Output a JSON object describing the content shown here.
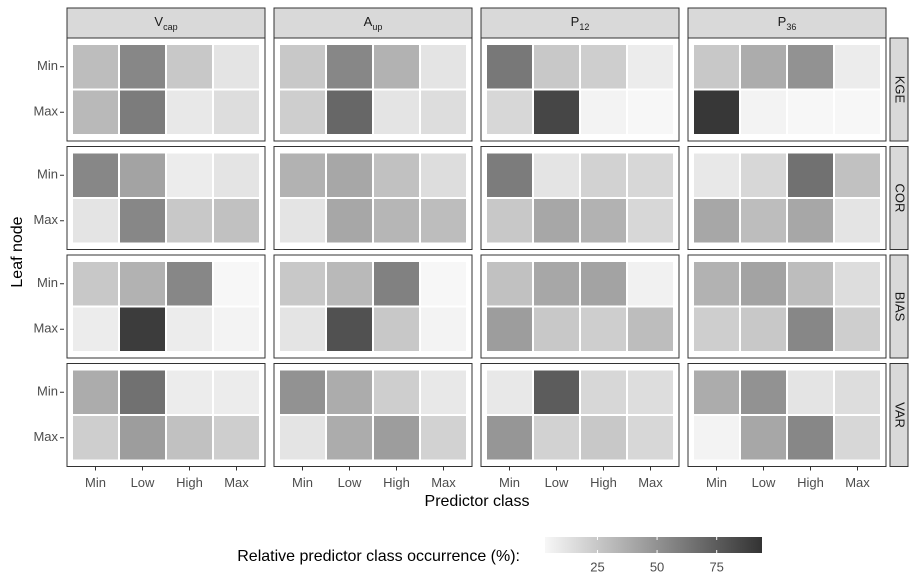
{
  "chart_data": {
    "type": "heatmap",
    "x_label": "Predictor class",
    "y_label": "Leaf node",
    "columns": [
      {
        "text": "V",
        "sub": "cap"
      },
      {
        "text": "A",
        "sub": "up"
      },
      {
        "text": "P",
        "sub": "12"
      },
      {
        "text": "P",
        "sub": "36"
      }
    ],
    "rows": [
      "KGE",
      "COR",
      "BIAS",
      "VAR"
    ],
    "categories": [
      "Min",
      "Low",
      "High",
      "Max"
    ],
    "y_categories": [
      "Min",
      "Max"
    ],
    "values": [
      [
        [
          [
            30,
            55,
            25,
            12
          ],
          [
            32,
            60,
            10,
            15
          ]
        ],
        [
          [
            25,
            55,
            35,
            12
          ],
          [
            22,
            70,
            12,
            15
          ]
        ],
        [
          [
            62,
            25,
            22,
            8
          ],
          [
            18,
            85,
            5,
            3
          ]
        ],
        [
          [
            25,
            38,
            50,
            8
          ],
          [
            92,
            5,
            3,
            3
          ]
        ]
      ],
      [
        [
          [
            55,
            42,
            8,
            12
          ],
          [
            12,
            55,
            25,
            28
          ]
        ],
        [
          [
            35,
            40,
            28,
            15
          ],
          [
            12,
            40,
            33,
            30
          ]
        ],
        [
          [
            60,
            12,
            20,
            18
          ],
          [
            25,
            40,
            35,
            18
          ]
        ],
        [
          [
            10,
            18,
            65,
            28
          ],
          [
            40,
            30,
            40,
            12
          ]
        ]
      ],
      [
        [
          [
            25,
            35,
            55,
            3
          ],
          [
            8,
            90,
            8,
            5
          ]
        ],
        [
          [
            25,
            32,
            58,
            3
          ],
          [
            12,
            80,
            25,
            5
          ]
        ],
        [
          [
            28,
            40,
            42,
            6
          ],
          [
            45,
            25,
            22,
            30
          ]
        ],
        [
          [
            35,
            42,
            30,
            15
          ],
          [
            22,
            25,
            55,
            22
          ]
        ]
      ],
      [
        [
          [
            38,
            65,
            8,
            8
          ],
          [
            22,
            45,
            28,
            22
          ]
        ],
        [
          [
            50,
            38,
            22,
            10
          ],
          [
            12,
            38,
            45,
            20
          ]
        ],
        [
          [
            10,
            75,
            18,
            15
          ],
          [
            48,
            20,
            25,
            18
          ]
        ],
        [
          [
            38,
            50,
            12,
            15
          ],
          [
            5,
            40,
            55,
            18
          ]
        ]
      ]
    ],
    "colorbar": {
      "title": "Relative predictor class occurrence (%):",
      "lim": [
        3,
        94
      ],
      "ticks": [
        25,
        50,
        75
      ],
      "colors": [
        "#f7f7f7",
        "#333333"
      ]
    }
  }
}
